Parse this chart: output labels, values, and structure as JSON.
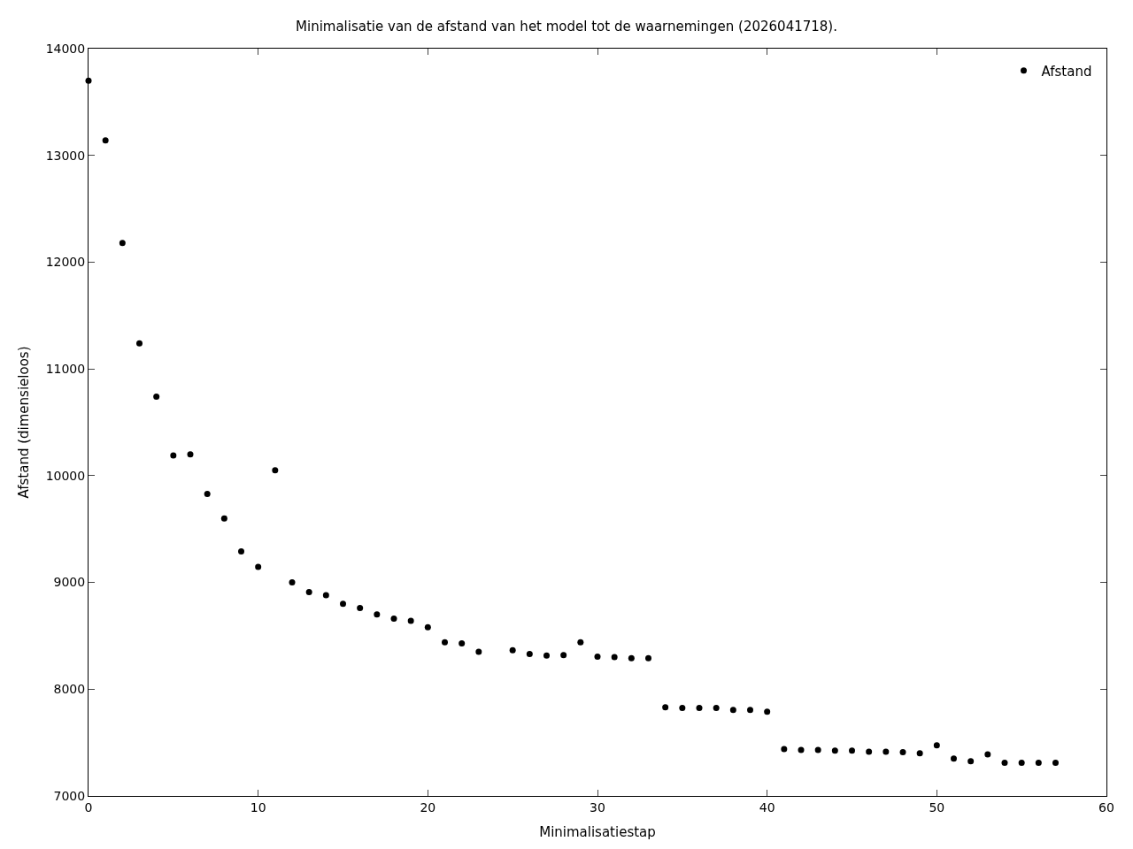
{
  "chart_data": {
    "type": "scatter",
    "title": "Minimalisatie van de afstand van het model tot de waarnemingen (2026041718).",
    "xlabel": "Minimalisatiestap",
    "ylabel": "Afstand (dimensieloos)",
    "x": [
      0,
      1,
      2,
      3,
      4,
      5,
      6,
      7,
      8,
      9,
      10,
      11,
      12,
      13,
      14,
      15,
      16,
      17,
      18,
      19,
      20,
      21,
      22,
      23,
      24,
      25,
      26,
      27,
      28,
      29,
      30,
      31,
      32,
      33,
      34,
      35,
      36,
      37,
      38,
      39,
      40,
      41,
      42,
      43,
      44,
      45,
      46,
      47,
      48,
      49,
      50,
      51,
      52,
      53,
      54,
      55,
      56,
      57
    ],
    "series": [
      {
        "name": "Afstand",
        "color": "#000000",
        "values": [
          13700,
          13140,
          12180,
          11240,
          10740,
          10190,
          10200,
          9830,
          9600,
          9290,
          9145,
          10050,
          9000,
          8910,
          8880,
          8800,
          8760,
          8700,
          8660,
          8640,
          8580,
          8440,
          8430,
          8350,
          null,
          8365,
          8330,
          8315,
          8320,
          8440,
          8305,
          8300,
          8290,
          8290,
          7830,
          7825,
          7825,
          7825,
          7805,
          7805,
          7790,
          7440,
          7430,
          7430,
          7425,
          7425,
          7415,
          7415,
          7410,
          7400,
          7475,
          7350,
          7325,
          7390,
          7310,
          7310,
          7310,
          7310
        ]
      }
    ],
    "xlim": [
      0,
      60
    ],
    "xticks": [
      0,
      10,
      20,
      30,
      40,
      50,
      60
    ],
    "ylim": [
      7000,
      14000
    ],
    "yticks": [
      7000,
      8000,
      9000,
      10000,
      11000,
      12000,
      13000,
      14000
    ],
    "grid": false,
    "legend": "top right",
    "marker": "circle"
  }
}
